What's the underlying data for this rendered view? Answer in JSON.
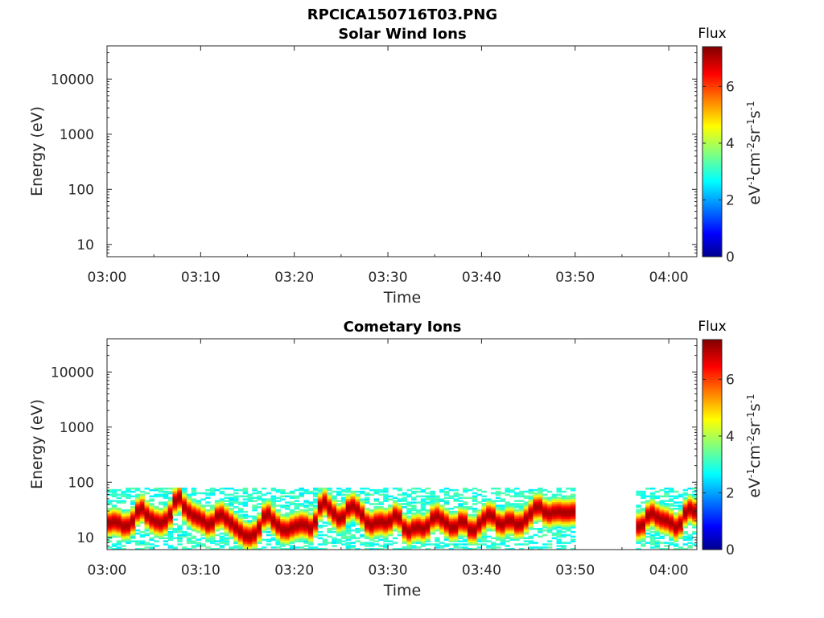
{
  "figure_title": "RPCICA150716T03.PNG",
  "chart_data": [
    {
      "type": "heatmap",
      "title": "Solar Wind Ions",
      "xlabel": "Time",
      "ylabel": "Energy (eV)",
      "x_ticks": [
        "03:00",
        "03:10",
        "03:20",
        "03:30",
        "03:40",
        "03:50",
        "04:00"
      ],
      "x_range_min": [
        0,
        63
      ],
      "y_scale": "log",
      "y_ticks": [
        10,
        100,
        1000,
        10000
      ],
      "y_tick_labels": [
        "10",
        "100",
        "1000",
        "10000"
      ],
      "y_range_eV": [
        6,
        40000
      ],
      "colorbar": {
        "title": "Flux",
        "label": "eV-1cm-2sr-1s-1",
        "range": [
          0,
          7.4
        ],
        "ticks": [
          0,
          2,
          4,
          6
        ],
        "colormap": "jet"
      },
      "data_present": false,
      "grid": false
    },
    {
      "type": "heatmap",
      "title": "Cometary Ions",
      "xlabel": "Time",
      "ylabel": "Energy (eV)",
      "x_ticks": [
        "03:00",
        "03:10",
        "03:20",
        "03:30",
        "03:40",
        "03:50",
        "04:00"
      ],
      "x_range_min": [
        0,
        63
      ],
      "y_scale": "log",
      "y_ticks": [
        10,
        100,
        1000,
        10000
      ],
      "y_tick_labels": [
        "10",
        "100",
        "1000",
        "10000"
      ],
      "y_range_eV": [
        6,
        40000
      ],
      "colorbar": {
        "title": "Flux",
        "label": "eV-1cm-2sr-1s-1",
        "range": [
          0,
          7.4
        ],
        "ticks": [
          0,
          2,
          4,
          6
        ],
        "colormap": "jet"
      },
      "data_present": true,
      "data_gap_min": [
        50,
        56.5
      ],
      "max_energy_eV": 80,
      "peak_energy_trace": {
        "time_min": [
          0,
          1,
          2,
          3,
          3.5,
          4,
          5,
          6,
          7,
          7.5,
          8,
          9,
          10,
          11,
          12,
          13,
          14,
          15,
          16,
          17,
          18,
          19,
          20,
          21,
          22,
          23,
          24,
          25,
          26,
          27,
          28,
          29,
          30,
          31,
          32,
          33,
          34,
          35,
          36,
          37,
          38,
          39,
          40,
          41,
          42,
          43,
          44,
          45,
          46,
          47,
          48,
          49,
          50,
          56.5,
          57,
          58,
          59,
          60,
          61,
          62,
          63
        ],
        "energy_eV": [
          18,
          20,
          15,
          22,
          40,
          28,
          20,
          18,
          30,
          70,
          40,
          26,
          22,
          16,
          28,
          20,
          14,
          10,
          12,
          30,
          18,
          13,
          16,
          18,
          14,
          50,
          30,
          20,
          40,
          30,
          16,
          20,
          18,
          28,
          12,
          16,
          14,
          26,
          20,
          14,
          22,
          12,
          20,
          28,
          16,
          22,
          16,
          24,
          40,
          26,
          30,
          28,
          30,
          18,
          14,
          30,
          22,
          20,
          14,
          35,
          28
        ]
      }
    }
  ]
}
